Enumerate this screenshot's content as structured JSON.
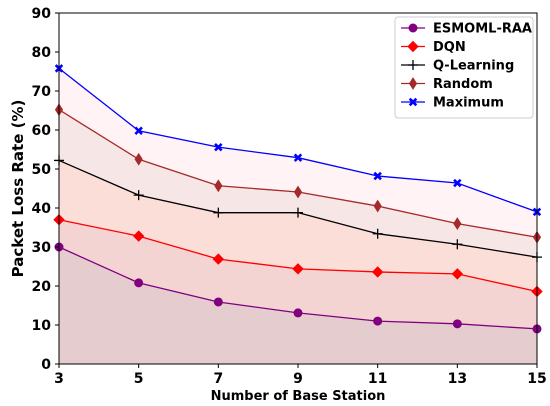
{
  "chart_data": {
    "type": "line",
    "title": "",
    "xlabel": "Number of Base Station",
    "ylabel": "Packet Loss Rate (%)",
    "x": [
      3,
      5,
      7,
      9,
      11,
      13,
      15
    ],
    "xlim": [
      3,
      15
    ],
    "ylim": [
      0,
      90
    ],
    "xticks": [
      "3",
      "5",
      "7",
      "9",
      "11",
      "13",
      "15"
    ],
    "yticks": [
      "0",
      "10",
      "20",
      "30",
      "40",
      "50",
      "60",
      "70",
      "80",
      "90"
    ],
    "grid": false,
    "legend_position": "top-right",
    "series": [
      {
        "name": "ESMOML-RAA",
        "values": [
          30.0,
          20.8,
          15.9,
          13.1,
          11.0,
          10.3,
          9.0
        ],
        "color": "#800080",
        "marker": "circle",
        "fill": "#e5cccf"
      },
      {
        "name": "DQN",
        "values": [
          37.0,
          32.8,
          26.9,
          24.4,
          23.6,
          23.1,
          18.6
        ],
        "color": "#ff0000",
        "marker": "diamond",
        "fill": "#f3d4d2"
      },
      {
        "name": "Q-Learning",
        "values": [
          52.2,
          43.3,
          38.8,
          38.8,
          33.4,
          30.7,
          27.4
        ],
        "color": "#000000",
        "marker": "plus",
        "fill": "#fbded8"
      },
      {
        "name": "Random",
        "values": [
          65.2,
          52.5,
          45.7,
          44.1,
          40.5,
          36.0,
          32.5
        ],
        "color": "#a52a2a",
        "marker": "thin-diamond",
        "fill": "#f7e6e6"
      },
      {
        "name": "Maximum",
        "values": [
          75.8,
          59.8,
          55.6,
          52.9,
          48.2,
          46.4,
          39.0
        ],
        "color": "#0000ff",
        "marker": "x",
        "fill": "#fff3f6"
      }
    ]
  }
}
